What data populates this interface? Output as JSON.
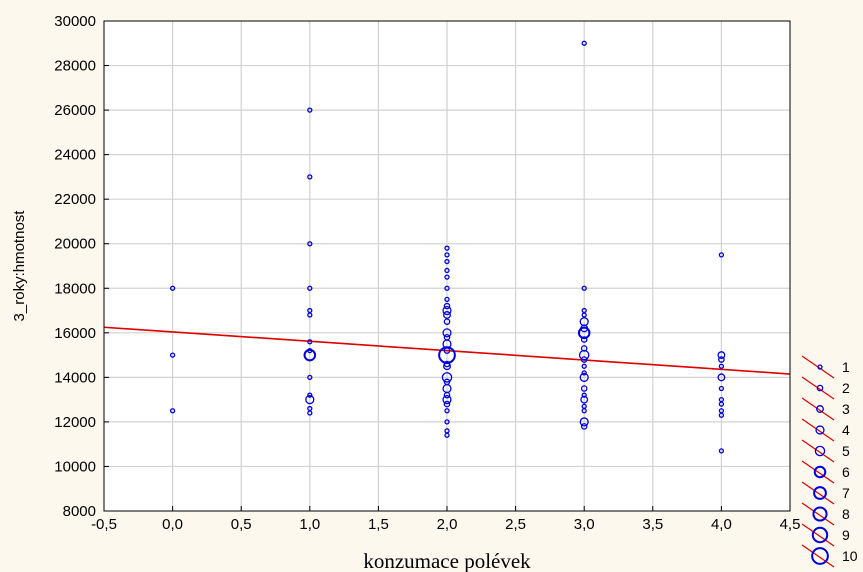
{
  "chart_data": {
    "type": "scatter",
    "title": "",
    "xlabel": "konzumace polévek",
    "ylabel": "3_roky:hmotnost",
    "xlim": [
      -0.5,
      4.5
    ],
    "ylim": [
      8000,
      30000
    ],
    "x_ticks": [
      -0.5,
      0.0,
      0.5,
      1.0,
      1.5,
      2.0,
      2.5,
      3.0,
      3.5,
      4.0,
      4.5
    ],
    "x_tick_labels": [
      "-0,5",
      "0,0",
      "0,5",
      "1,0",
      "1,5",
      "2,0",
      "2,5",
      "3,0",
      "3,5",
      "4,0",
      "4,5"
    ],
    "y_ticks": [
      8000,
      10000,
      12000,
      14000,
      16000,
      18000,
      20000,
      22000,
      24000,
      26000,
      28000,
      30000
    ],
    "y_tick_labels": [
      "8000",
      "10000",
      "12000",
      "14000",
      "16000",
      "18000",
      "20000",
      "22000",
      "24000",
      "26000",
      "28000",
      "30000"
    ],
    "grid": true,
    "legend_position": "right",
    "point_color": "#0000e0",
    "line_color": "#e00000",
    "regression_line": {
      "x": [
        -0.5,
        4.5
      ],
      "y": [
        16250,
        14150
      ]
    },
    "legend_entries": [
      "1",
      "2",
      "3",
      "4",
      "5",
      "6",
      "7",
      "8",
      "9",
      "10"
    ],
    "points": [
      {
        "x": 0,
        "y": 18000,
        "n": 1
      },
      {
        "x": 0,
        "y": 15000,
        "n": 1
      },
      {
        "x": 0,
        "y": 12500,
        "n": 1
      },
      {
        "x": 1,
        "y": 26000,
        "n": 1
      },
      {
        "x": 1,
        "y": 23000,
        "n": 1
      },
      {
        "x": 1,
        "y": 20000,
        "n": 1
      },
      {
        "x": 1,
        "y": 18000,
        "n": 1
      },
      {
        "x": 1,
        "y": 17000,
        "n": 1
      },
      {
        "x": 1,
        "y": 16800,
        "n": 1
      },
      {
        "x": 1,
        "y": 15600,
        "n": 1
      },
      {
        "x": 1,
        "y": 15200,
        "n": 1
      },
      {
        "x": 1,
        "y": 15000,
        "n": 6
      },
      {
        "x": 1,
        "y": 14000,
        "n": 1
      },
      {
        "x": 1,
        "y": 13200,
        "n": 1
      },
      {
        "x": 1,
        "y": 13000,
        "n": 4
      },
      {
        "x": 1,
        "y": 12600,
        "n": 1
      },
      {
        "x": 1,
        "y": 12400,
        "n": 1
      },
      {
        "x": 2,
        "y": 19800,
        "n": 1
      },
      {
        "x": 2,
        "y": 19500,
        "n": 1
      },
      {
        "x": 2,
        "y": 19200,
        "n": 1
      },
      {
        "x": 2,
        "y": 18800,
        "n": 1
      },
      {
        "x": 2,
        "y": 18500,
        "n": 1
      },
      {
        "x": 2,
        "y": 18000,
        "n": 1
      },
      {
        "x": 2,
        "y": 17500,
        "n": 1
      },
      {
        "x": 2,
        "y": 17200,
        "n": 2
      },
      {
        "x": 2,
        "y": 17000,
        "n": 4
      },
      {
        "x": 2,
        "y": 16800,
        "n": 3
      },
      {
        "x": 2,
        "y": 16500,
        "n": 2
      },
      {
        "x": 2,
        "y": 16000,
        "n": 4
      },
      {
        "x": 2,
        "y": 15800,
        "n": 2
      },
      {
        "x": 2,
        "y": 15500,
        "n": 4
      },
      {
        "x": 2,
        "y": 15200,
        "n": 2
      },
      {
        "x": 2,
        "y": 15000,
        "n": 10
      },
      {
        "x": 2,
        "y": 14600,
        "n": 2
      },
      {
        "x": 2,
        "y": 14500,
        "n": 3
      },
      {
        "x": 2,
        "y": 14000,
        "n": 5
      },
      {
        "x": 2,
        "y": 13800,
        "n": 2
      },
      {
        "x": 2,
        "y": 13500,
        "n": 4
      },
      {
        "x": 2,
        "y": 13200,
        "n": 2
      },
      {
        "x": 2,
        "y": 13000,
        "n": 4
      },
      {
        "x": 2,
        "y": 12800,
        "n": 2
      },
      {
        "x": 2,
        "y": 12500,
        "n": 1
      },
      {
        "x": 2,
        "y": 12000,
        "n": 1
      },
      {
        "x": 2,
        "y": 11600,
        "n": 1
      },
      {
        "x": 2,
        "y": 11400,
        "n": 1
      },
      {
        "x": 3,
        "y": 29000,
        "n": 1
      },
      {
        "x": 3,
        "y": 18000,
        "n": 1
      },
      {
        "x": 3,
        "y": 17000,
        "n": 1
      },
      {
        "x": 3,
        "y": 16800,
        "n": 1
      },
      {
        "x": 3,
        "y": 16500,
        "n": 4
      },
      {
        "x": 3,
        "y": 16200,
        "n": 3
      },
      {
        "x": 3,
        "y": 16000,
        "n": 6
      },
      {
        "x": 3,
        "y": 15700,
        "n": 2
      },
      {
        "x": 3,
        "y": 15300,
        "n": 2
      },
      {
        "x": 3,
        "y": 15000,
        "n": 5
      },
      {
        "x": 3,
        "y": 14800,
        "n": 2
      },
      {
        "x": 3,
        "y": 14500,
        "n": 1
      },
      {
        "x": 3,
        "y": 14200,
        "n": 1
      },
      {
        "x": 3,
        "y": 14000,
        "n": 4
      },
      {
        "x": 3,
        "y": 13500,
        "n": 2
      },
      {
        "x": 3,
        "y": 13200,
        "n": 1
      },
      {
        "x": 3,
        "y": 13000,
        "n": 3
      },
      {
        "x": 3,
        "y": 12700,
        "n": 1
      },
      {
        "x": 3,
        "y": 12500,
        "n": 1
      },
      {
        "x": 3,
        "y": 12000,
        "n": 4
      },
      {
        "x": 3,
        "y": 11800,
        "n": 2
      },
      {
        "x": 4,
        "y": 19500,
        "n": 1
      },
      {
        "x": 4,
        "y": 15000,
        "n": 3
      },
      {
        "x": 4,
        "y": 14800,
        "n": 2
      },
      {
        "x": 4,
        "y": 14500,
        "n": 1
      },
      {
        "x": 4,
        "y": 14000,
        "n": 3
      },
      {
        "x": 4,
        "y": 13500,
        "n": 1
      },
      {
        "x": 4,
        "y": 13000,
        "n": 1
      },
      {
        "x": 4,
        "y": 12800,
        "n": 1
      },
      {
        "x": 4,
        "y": 12500,
        "n": 1
      },
      {
        "x": 4,
        "y": 12300,
        "n": 1
      },
      {
        "x": 4,
        "y": 10700,
        "n": 1
      }
    ]
  }
}
